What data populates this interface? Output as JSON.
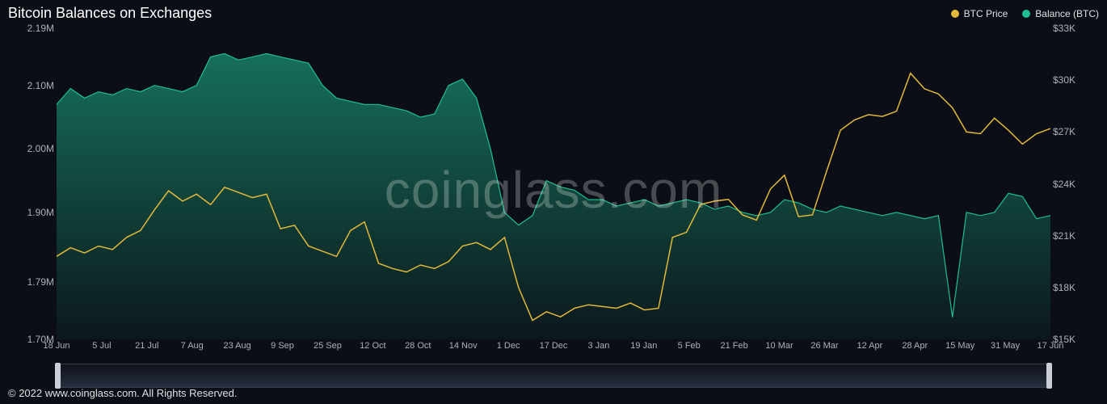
{
  "title": "Bitcoin Balances on Exchanges",
  "watermark": "coinglass.com",
  "copyright": "© 2022 www.coinglass.com. All Rights Reserved.",
  "legend": {
    "price": {
      "label": "BTC Price",
      "color": "#e2b93b"
    },
    "balance": {
      "label": "Balance (BTC)",
      "color": "#1fbf8f"
    }
  },
  "chart": {
    "background": "#0b0e16",
    "grid_color": "#1a1f2b",
    "axis_color": "#aab0bb",
    "label_fontsize": 12,
    "y_left": {
      "min": 1700000,
      "max": 2190000,
      "ticks": [
        {
          "v": 2190000,
          "label": "2.19M"
        },
        {
          "v": 2100000,
          "label": "2.10M"
        },
        {
          "v": 2000000,
          "label": "2.00M"
        },
        {
          "v": 1900000,
          "label": "1.90M"
        },
        {
          "v": 1790000,
          "label": "1.79M"
        },
        {
          "v": 1700000,
          "label": "1.70M"
        }
      ]
    },
    "y_right": {
      "min": 15000,
      "max": 33000,
      "ticks": [
        {
          "v": 33000,
          "label": "$33K"
        },
        {
          "v": 30000,
          "label": "$30K"
        },
        {
          "v": 27000,
          "label": "$27K"
        },
        {
          "v": 24000,
          "label": "$24K"
        },
        {
          "v": 21000,
          "label": "$21K"
        },
        {
          "v": 18000,
          "label": "$18K"
        },
        {
          "v": 15000,
          "label": "$15K"
        }
      ]
    },
    "x_ticks": [
      "18 Jun",
      "5 Jul",
      "21 Jul",
      "7 Aug",
      "23 Aug",
      "9 Sep",
      "25 Sep",
      "12 Oct",
      "28 Oct",
      "14 Nov",
      "1 Dec",
      "17 Dec",
      "3 Jan",
      "19 Jan",
      "5 Feb",
      "21 Feb",
      "10 Mar",
      "26 Mar",
      "12 Apr",
      "28 Apr",
      "15 May",
      "31 May",
      "17 Jun"
    ],
    "balance_series": {
      "color_line": "#1fbf8f",
      "fill_top": "rgba(31,191,143,0.55)",
      "fill_bottom": "rgba(31,191,143,0.05)",
      "values": [
        2070000,
        2095000,
        2080000,
        2090000,
        2085000,
        2095000,
        2090000,
        2100000,
        2095000,
        2090000,
        2100000,
        2145000,
        2150000,
        2140000,
        2145000,
        2150000,
        2145000,
        2140000,
        2135000,
        2100000,
        2080000,
        2075000,
        2070000,
        2070000,
        2065000,
        2060000,
        2050000,
        2055000,
        2100000,
        2110000,
        2080000,
        2000000,
        1900000,
        1880000,
        1895000,
        1950000,
        1940000,
        1935000,
        1920000,
        1920000,
        1910000,
        1915000,
        1920000,
        1910000,
        1915000,
        1920000,
        1915000,
        1905000,
        1910000,
        1900000,
        1895000,
        1900000,
        1920000,
        1915000,
        1905000,
        1900000,
        1910000,
        1905000,
        1900000,
        1895000,
        1900000,
        1895000,
        1890000,
        1895000,
        1735000,
        1900000,
        1895000,
        1900000,
        1930000,
        1925000,
        1890000,
        1895000
      ]
    },
    "price_series": {
      "color": "#e2b93b",
      "line_width": 1.5,
      "values": [
        19800,
        20300,
        20000,
        20400,
        20200,
        20900,
        21300,
        22500,
        23600,
        23000,
        23400,
        22800,
        23800,
        23500,
        23200,
        23400,
        21400,
        21600,
        20400,
        20100,
        19800,
        21300,
        21800,
        19400,
        19100,
        18900,
        19300,
        19100,
        19500,
        20400,
        20600,
        20200,
        20900,
        18000,
        16100,
        16600,
        16300,
        16800,
        17000,
        16900,
        16800,
        17100,
        16700,
        16800,
        20900,
        21200,
        22800,
        23000,
        23100,
        22200,
        21900,
        23700,
        24500,
        22100,
        22200,
        24700,
        27100,
        27700,
        28000,
        27900,
        28200,
        30400,
        29500,
        29200,
        28400,
        27000,
        26900,
        27800,
        27100,
        26300,
        26900,
        27200
      ]
    }
  }
}
